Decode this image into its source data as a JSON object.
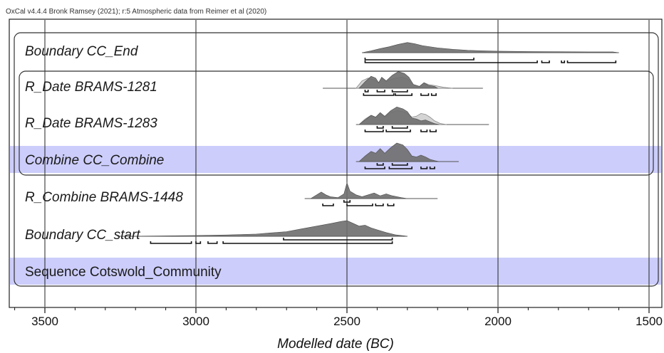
{
  "credit": "OxCal v4.4.4 Bronk Ramsey (2021); r:5 Atmospheric data from Reimer et al (2020)",
  "chart_data": {
    "type": "oxcal-multiplot",
    "xlabel": "Modelled date (BC)",
    "xlim": [
      3600,
      1490
    ],
    "x_ticks": [
      3500,
      3000,
      2500,
      2000,
      1500
    ],
    "x_tick_labels": [
      "3500",
      "3000",
      "2500",
      "2000",
      "1500"
    ],
    "highlight_color": "#cccdfa",
    "posterior_color": "#6e6e6e",
    "prior_color": "#d4d4d4",
    "rows": [
      {
        "label": "Boundary CC_End",
        "italic": true,
        "highlight": false,
        "line_range": [
          2450,
          1600
        ],
        "prior": [],
        "posterior": [
          [
            2450,
            0
          ],
          [
            2420,
            0.1
          ],
          [
            2390,
            0.22
          ],
          [
            2360,
            0.32
          ],
          [
            2330,
            0.45
          ],
          [
            2300,
            0.55
          ],
          [
            2275,
            0.48
          ],
          [
            2250,
            0.38
          ],
          [
            2200,
            0.26
          ],
          [
            2150,
            0.18
          ],
          [
            2100,
            0.13
          ],
          [
            2050,
            0.1
          ],
          [
            2000,
            0.08
          ],
          [
            1900,
            0.06
          ],
          [
            1800,
            0.05
          ],
          [
            1700,
            0.04
          ],
          [
            1620,
            0.04
          ],
          [
            1600,
            0
          ]
        ],
        "ranges68": [],
        "ranges95": [
          [
            2440,
            2080
          ]
        ],
        "ranges95b": [
          [
            2440,
            1870
          ],
          [
            1855,
            1830
          ],
          [
            1790,
            1780
          ],
          [
            1770,
            1610
          ]
        ]
      },
      {
        "label": "R_Date BRAMS-1281",
        "italic": true,
        "highlight": false,
        "line_range": [
          2580,
          2050
        ],
        "prior": [
          [
            2470,
            0
          ],
          [
            2450,
            0.4
          ],
          [
            2430,
            0.55
          ],
          [
            2410,
            0.45
          ],
          [
            2395,
            0.3
          ],
          [
            2385,
            0.55
          ],
          [
            2370,
            0.35
          ],
          [
            2350,
            0.5
          ],
          [
            2320,
            0.6
          ],
          [
            2300,
            0.5
          ],
          [
            2280,
            0.2
          ],
          [
            2260,
            0.1
          ],
          [
            2245,
            0.3
          ],
          [
            2230,
            0.2
          ],
          [
            2210,
            0.15
          ],
          [
            2180,
            0.05
          ],
          [
            2150,
            0
          ]
        ],
        "posterior": [
          [
            2460,
            0
          ],
          [
            2440,
            0.35
          ],
          [
            2420,
            0.65
          ],
          [
            2405,
            0.55
          ],
          [
            2395,
            0.3
          ],
          [
            2385,
            0.6
          ],
          [
            2370,
            0.4
          ],
          [
            2350,
            0.7
          ],
          [
            2330,
            0.9
          ],
          [
            2310,
            0.8
          ],
          [
            2295,
            0.6
          ],
          [
            2280,
            0.2
          ],
          [
            2260,
            0.1
          ],
          [
            2245,
            0.3
          ],
          [
            2230,
            0.15
          ],
          [
            2210,
            0.1
          ],
          [
            2200,
            0
          ]
        ],
        "ranges68": [
          [
            2440,
            2430
          ],
          [
            2400,
            2375
          ],
          [
            2350,
            2300
          ]
        ],
        "ranges95": [
          [
            2445,
            2345
          ],
          [
            2340,
            2285
          ],
          [
            2255,
            2230
          ],
          [
            2220,
            2205
          ]
        ],
        "ranges95b": []
      },
      {
        "label": "R_Date BRAMS-1283",
        "italic": true,
        "highlight": false,
        "line_range": [
          2470,
          2030
        ],
        "prior": [
          [
            2460,
            0
          ],
          [
            2440,
            0.3
          ],
          [
            2420,
            0.5
          ],
          [
            2405,
            0.4
          ],
          [
            2390,
            0.6
          ],
          [
            2375,
            0.4
          ],
          [
            2355,
            0.65
          ],
          [
            2335,
            0.75
          ],
          [
            2315,
            0.7
          ],
          [
            2300,
            0.6
          ],
          [
            2285,
            0.4
          ],
          [
            2270,
            0.45
          ],
          [
            2255,
            0.6
          ],
          [
            2240,
            0.55
          ],
          [
            2225,
            0.4
          ],
          [
            2210,
            0.2
          ],
          [
            2190,
            0.05
          ],
          [
            2170,
            0
          ]
        ],
        "posterior": [
          [
            2460,
            0
          ],
          [
            2440,
            0.25
          ],
          [
            2420,
            0.5
          ],
          [
            2405,
            0.4
          ],
          [
            2390,
            0.65
          ],
          [
            2375,
            0.45
          ],
          [
            2355,
            0.75
          ],
          [
            2335,
            0.95
          ],
          [
            2315,
            0.85
          ],
          [
            2300,
            0.7
          ],
          [
            2285,
            0.35
          ],
          [
            2270,
            0.3
          ],
          [
            2255,
            0.2
          ],
          [
            2240,
            0.25
          ],
          [
            2225,
            0.15
          ],
          [
            2210,
            0.05
          ],
          [
            2195,
            0
          ]
        ],
        "ranges68": [
          [
            2400,
            2380
          ],
          [
            2350,
            2300
          ]
        ],
        "ranges95": [
          [
            2440,
            2380
          ],
          [
            2370,
            2290
          ],
          [
            2255,
            2235
          ],
          [
            2225,
            2205
          ]
        ],
        "ranges95b": []
      },
      {
        "label": "Combine CC_Combine",
        "italic": true,
        "highlight": true,
        "line_range": [
          2470,
          2130
        ],
        "prior": [],
        "posterior": [
          [
            2460,
            0
          ],
          [
            2440,
            0.3
          ],
          [
            2420,
            0.55
          ],
          [
            2405,
            0.45
          ],
          [
            2390,
            0.7
          ],
          [
            2375,
            0.45
          ],
          [
            2355,
            0.75
          ],
          [
            2335,
            1.0
          ],
          [
            2315,
            0.9
          ],
          [
            2300,
            0.65
          ],
          [
            2285,
            0.3
          ],
          [
            2270,
            0.25
          ],
          [
            2255,
            0.35
          ],
          [
            2240,
            0.25
          ],
          [
            2225,
            0.12
          ],
          [
            2210,
            0.05
          ],
          [
            2195,
            0
          ]
        ],
        "ranges68": [
          [
            2400,
            2380
          ],
          [
            2350,
            2300
          ]
        ],
        "ranges95": [
          [
            2440,
            2375
          ],
          [
            2360,
            2285
          ],
          [
            2255,
            2235
          ],
          [
            2225,
            2210
          ]
        ],
        "ranges95b": []
      },
      {
        "label": "R_Combine BRAMS-1448",
        "italic": true,
        "highlight": false,
        "line_range": [
          2640,
          2200
        ],
        "prior": [],
        "posterior": [
          [
            2620,
            0
          ],
          [
            2600,
            0.2
          ],
          [
            2585,
            0.35
          ],
          [
            2570,
            0.2
          ],
          [
            2555,
            0.1
          ],
          [
            2530,
            0.05
          ],
          [
            2510,
            0.25
          ],
          [
            2500,
            0.85
          ],
          [
            2490,
            0.4
          ],
          [
            2470,
            0.2
          ],
          [
            2450,
            0.1
          ],
          [
            2430,
            0.2
          ],
          [
            2410,
            0.3
          ],
          [
            2390,
            0.15
          ],
          [
            2370,
            0.25
          ],
          [
            2350,
            0.15
          ],
          [
            2320,
            0.05
          ],
          [
            2300,
            0
          ]
        ],
        "ranges68": [
          [
            2510,
            2490
          ]
        ],
        "ranges95": [
          [
            2580,
            2545
          ],
          [
            2500,
            2415
          ],
          [
            2405,
            2380
          ],
          [
            2365,
            2345
          ]
        ],
        "ranges95b": []
      },
      {
        "label": "Boundary CC_start",
        "italic": true,
        "highlight": false,
        "line_range": [
          3260,
          2300
        ],
        "prior": [],
        "posterior": [
          [
            3240,
            0
          ],
          [
            3100,
            0.02
          ],
          [
            3000,
            0.04
          ],
          [
            2900,
            0.07
          ],
          [
            2800,
            0.12
          ],
          [
            2700,
            0.25
          ],
          [
            2650,
            0.4
          ],
          [
            2600,
            0.55
          ],
          [
            2550,
            0.7
          ],
          [
            2520,
            0.8
          ],
          [
            2500,
            0.85
          ],
          [
            2480,
            0.7
          ],
          [
            2460,
            0.55
          ],
          [
            2440,
            0.6
          ],
          [
            2420,
            0.45
          ],
          [
            2400,
            0.35
          ],
          [
            2370,
            0.2
          ],
          [
            2340,
            0.08
          ],
          [
            2310,
            0.02
          ],
          [
            2300,
            0
          ]
        ],
        "ranges68": [
          [
            2710,
            2350
          ]
        ],
        "ranges95": [
          [
            3150,
            3015
          ],
          [
            3000,
            2985
          ],
          [
            2960,
            2930
          ],
          [
            2910,
            2350
          ]
        ],
        "ranges95b": []
      },
      {
        "label": "Sequence Cotswold_Community",
        "italic": false,
        "highlight": true,
        "line_range": null,
        "prior": [],
        "posterior": [],
        "ranges68": [],
        "ranges95": [],
        "ranges95b": []
      }
    ]
  }
}
